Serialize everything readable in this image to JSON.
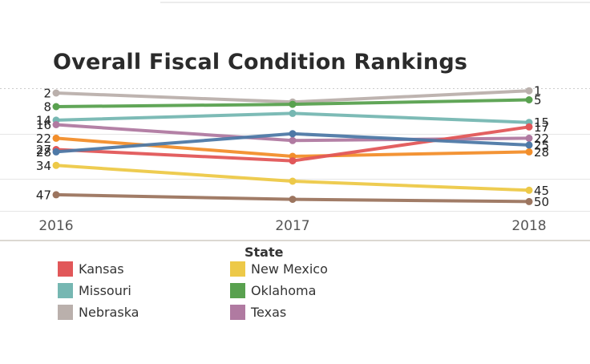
{
  "chart_data": {
    "type": "line",
    "title": "Overall Fiscal Condition Rankings",
    "xlabel": "",
    "ylabel": "",
    "x": [
      "2016",
      "2017",
      "2018"
    ],
    "y_reversed": true,
    "ylim": [
      0,
      54
    ],
    "grid": true,
    "legend_title": "State",
    "legend_placement": "bottom",
    "series": [
      {
        "name": "Nebraska",
        "color": "#bab0ac",
        "values": [
          2,
          6,
          1
        ],
        "labels": [
          "2",
          "",
          "1"
        ],
        "in_legend": true
      },
      {
        "name": "Oklahoma",
        "color": "#59a14f",
        "values": [
          8,
          7,
          5
        ],
        "labels": [
          "8",
          "",
          "5"
        ],
        "in_legend": true
      },
      {
        "name": "Missouri",
        "color": "#76b7b2",
        "values": [
          14,
          11,
          15
        ],
        "labels": [
          "14",
          "",
          "15"
        ],
        "in_legend": true
      },
      {
        "name": "Texas",
        "color": "#b07aa1",
        "values": [
          16,
          23,
          22
        ],
        "labels": [
          "16",
          "",
          "22"
        ],
        "in_legend": true
      },
      {
        "name": "",
        "color": "#f28e2b",
        "values": [
          22,
          30,
          28
        ],
        "labels": [
          "22",
          "",
          "28"
        ],
        "in_legend": false
      },
      {
        "name": "Kansas",
        "color": "#e15759",
        "values": [
          27,
          32,
          17
        ],
        "labels": [
          "27",
          "",
          "17"
        ],
        "in_legend": true
      },
      {
        "name": "",
        "color": "#4e79a7",
        "values": [
          28,
          20,
          25
        ],
        "labels": [
          "28",
          "",
          "25"
        ],
        "in_legend": false
      },
      {
        "name": "New Mexico",
        "color": "#edc948",
        "values": [
          34,
          41,
          45
        ],
        "labels": [
          "34",
          "",
          "45"
        ],
        "in_legend": true
      },
      {
        "name": "",
        "color": "#9c755f",
        "values": [
          47,
          49,
          50
        ],
        "labels": [
          "47",
          "",
          "50"
        ],
        "in_legend": false
      }
    ],
    "gridlines": [
      0,
      20,
      40,
      54
    ]
  },
  "legend": {
    "title": "State",
    "items": [
      {
        "label": "Kansas",
        "color": "#e15759"
      },
      {
        "label": "Missouri",
        "color": "#76b7b2"
      },
      {
        "label": "Nebraska",
        "color": "#bab0ac"
      },
      {
        "label": "New Mexico",
        "color": "#edc948"
      },
      {
        "label": "Oklahoma",
        "color": "#59a14f"
      },
      {
        "label": "Texas",
        "color": "#b07aa1"
      }
    ]
  }
}
